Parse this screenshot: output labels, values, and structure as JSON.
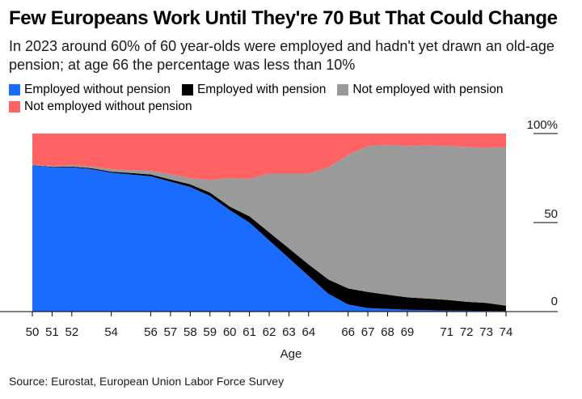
{
  "header": {
    "title": "Few Europeans Work Until They're 70 But That Could Change",
    "subtitle": "In 2023 around 60% of 60 year-olds were employed and hadn't yet drawn an old-age pension; at age 66 the percentage was less than 10%"
  },
  "source": "Source: Eurostat, European Union Labor Force Survey",
  "chart_data": {
    "type": "area",
    "stacked": true,
    "xlabel": "Age",
    "ylabel": "",
    "xlim": [
      50,
      74
    ],
    "ylim": [
      0,
      100
    ],
    "x": [
      50,
      51,
      52,
      53,
      54,
      55,
      56,
      57,
      58,
      59,
      60,
      61,
      62,
      63,
      64,
      65,
      66,
      67,
      68,
      69,
      70,
      71,
      72,
      73,
      74
    ],
    "x_tick_labels": [
      50,
      51,
      52,
      54,
      56,
      57,
      58,
      59,
      60,
      61,
      62,
      63,
      64,
      66,
      67,
      68,
      69,
      71,
      72,
      73,
      74
    ],
    "y_tick_labels": [
      "100%",
      "50",
      "0"
    ],
    "y_ticks": [
      100,
      50,
      0
    ],
    "legend": [
      {
        "name": "Employed without pension",
        "color": "#1a6cff"
      },
      {
        "name": "Employed with pension",
        "color": "#000000"
      },
      {
        "name": "Not employed with pension",
        "color": "#9a9a9a"
      },
      {
        "name": "Not employed without pension",
        "color": "#ff6262"
      }
    ],
    "series": [
      {
        "name": "Employed without pension",
        "color": "#1a6cff",
        "values": [
          82,
          81,
          81,
          80,
          78,
          77,
          76,
          73,
          70,
          65,
          57,
          50,
          40,
          30,
          20,
          10,
          4,
          2,
          1.5,
          1,
          0.8,
          0.6,
          0.5,
          0.4,
          0.3
        ]
      },
      {
        "name": "Employed with pension",
        "color": "#000000",
        "values": [
          0.2,
          0.3,
          0.4,
          0.5,
          0.6,
          0.8,
          1,
          1.2,
          1.5,
          1.8,
          2,
          3.5,
          4.5,
          5.5,
          6.5,
          8,
          9,
          9,
          8,
          7,
          6.5,
          6,
          5,
          4.5,
          3
        ]
      },
      {
        "name": "Not employed with pension",
        "color": "#9a9a9a",
        "values": [
          0.3,
          0.5,
          0.8,
          1,
          1.4,
          1.5,
          2,
          3,
          3.5,
          7,
          16,
          21,
          33,
          42,
          51,
          63,
          75,
          82,
          84,
          85,
          86,
          86.5,
          87,
          87,
          89
        ]
      },
      {
        "name": "Not employed without pension",
        "color": "#ff6262",
        "values": [
          17.5,
          18.2,
          17.8,
          18.5,
          20,
          20.7,
          21,
          22.8,
          25,
          26.2,
          25,
          25.5,
          22.5,
          22.5,
          22.5,
          19,
          12,
          7,
          6.5,
          7,
          6.7,
          6.9,
          7.5,
          8.1,
          7.7
        ]
      }
    ]
  }
}
